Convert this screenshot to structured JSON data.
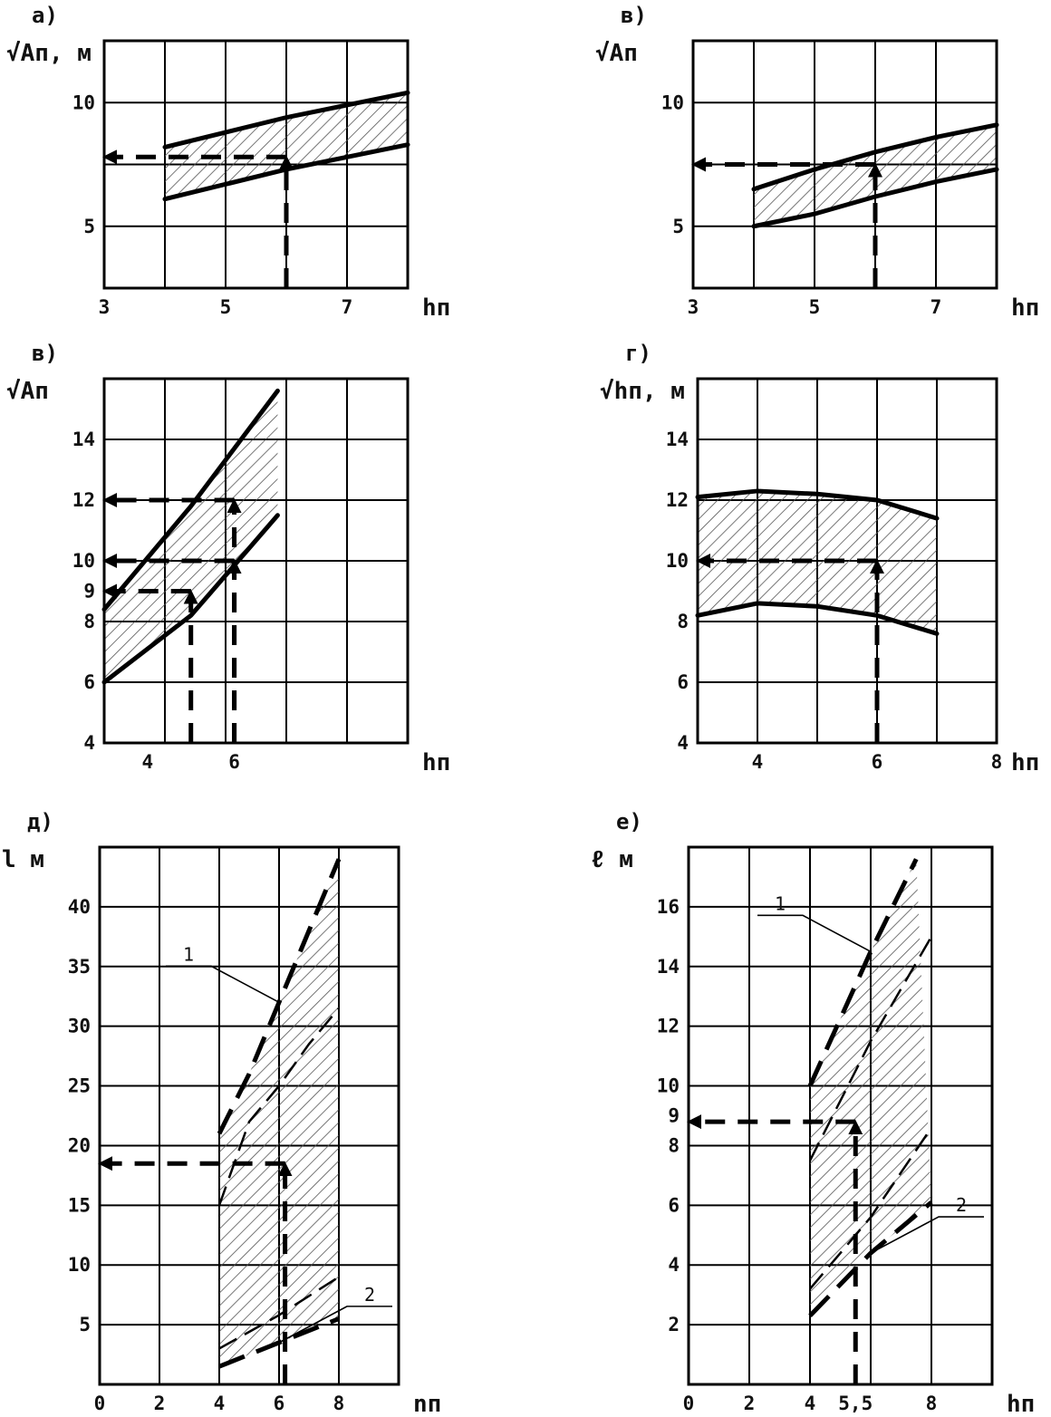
{
  "chart_data": [
    {
      "letter": "а)",
      "type": "area",
      "ylabel": "√Aп, м",
      "xlabel": "hп",
      "x_ticks": [
        3,
        5,
        7
      ],
      "y_ticks": [
        5,
        10
      ],
      "xlim": [
        3,
        8
      ],
      "ylim": [
        2.5,
        12.5
      ],
      "grid": true,
      "series": [
        {
          "role": "upper",
          "x": [
            4,
            5,
            6,
            7,
            8
          ],
          "y": [
            8.2,
            8.8,
            9.4,
            9.9,
            10.4
          ]
        },
        {
          "role": "lower",
          "x": [
            4,
            5,
            6,
            7,
            8
          ],
          "y": [
            6.1,
            6.7,
            7.3,
            7.8,
            8.3
          ]
        }
      ],
      "guides": [
        {
          "x": 6,
          "y": 7.8
        }
      ],
      "notes": []
    },
    {
      "letter": "в)",
      "type": "area",
      "ylabel": "√Aп",
      "xlabel": "hп",
      "x_ticks": [
        3,
        5,
        7
      ],
      "y_ticks": [
        5,
        10
      ],
      "xlim": [
        3,
        8
      ],
      "ylim": [
        2.5,
        12.5
      ],
      "grid": true,
      "series": [
        {
          "role": "upper",
          "x": [
            4,
            5,
            6,
            7,
            8
          ],
          "y": [
            6.5,
            7.3,
            8.0,
            8.6,
            9.1
          ]
        },
        {
          "role": "lower",
          "x": [
            4,
            5,
            6,
            7,
            8
          ],
          "y": [
            5.0,
            5.5,
            6.2,
            6.8,
            7.3
          ]
        }
      ],
      "guides": [
        {
          "x": 6,
          "y": 7.5
        }
      ],
      "notes": []
    },
    {
      "letter": "в)",
      "type": "area",
      "ylabel": "√Aп",
      "xlabel": "hп",
      "x_ticks": [
        4,
        6
      ],
      "y_ticks": [
        4,
        6,
        8,
        9,
        10,
        12,
        14
      ],
      "xlim": [
        3,
        10
      ],
      "ylim": [
        4,
        16
      ],
      "grid": true,
      "series": [
        {
          "role": "upper",
          "x": [
            3,
            5,
            7
          ],
          "y": [
            8.4,
            11.8,
            15.6
          ]
        },
        {
          "role": "lower",
          "x": [
            3,
            5,
            7
          ],
          "y": [
            6.0,
            8.2,
            11.5
          ]
        }
      ],
      "guides": [
        {
          "x": 6,
          "y": 12
        },
        {
          "x": 6,
          "y": 10
        },
        {
          "x": 5,
          "y": 9
        }
      ],
      "notes": []
    },
    {
      "letter": "г)",
      "type": "area",
      "ylabel": "√hп, м",
      "xlabel": "hп",
      "x_ticks": [
        4,
        6,
        8
      ],
      "y_ticks": [
        4,
        6,
        8,
        10,
        12,
        14
      ],
      "xlim": [
        3,
        8
      ],
      "ylim": [
        4,
        16
      ],
      "grid": true,
      "series": [
        {
          "role": "upper",
          "x": [
            3,
            4,
            5,
            6,
            7
          ],
          "y": [
            12.1,
            12.3,
            12.2,
            12.0,
            11.4
          ]
        },
        {
          "role": "lower",
          "x": [
            3,
            4,
            5,
            6,
            7
          ],
          "y": [
            8.2,
            8.6,
            8.5,
            8.2,
            7.6
          ]
        }
      ],
      "guides": [
        {
          "x": 6,
          "y": 10
        }
      ],
      "notes": []
    },
    {
      "letter": "д)",
      "type": "area",
      "ylabel": "l м",
      "xlabel": "nп",
      "x_ticks": [
        0,
        2,
        4,
        6,
        8
      ],
      "y_ticks": [
        5,
        10,
        15,
        20,
        25,
        30,
        35,
        40
      ],
      "xlim": [
        0,
        10
      ],
      "ylim": [
        0,
        45
      ],
      "grid": true,
      "series": [
        {
          "role": "upper",
          "x": [
            4,
            5,
            6,
            7,
            8
          ],
          "y": [
            21,
            26,
            32,
            38,
            44
          ]
        },
        {
          "role": "lower",
          "x": [
            4,
            6,
            8
          ],
          "y": [
            1.5,
            3.5,
            5.5
          ]
        },
        {
          "role": "mid",
          "x": [
            4,
            5,
            6,
            7,
            8
          ],
          "y": [
            15,
            22,
            25,
            28.5,
            31.5
          ]
        },
        {
          "role": "mid",
          "x": [
            4,
            6,
            8
          ],
          "y": [
            3.0,
            5.8,
            9.0
          ]
        }
      ],
      "guides": [
        {
          "x": 6.2,
          "y": 18.5
        }
      ],
      "notes": [
        "1",
        "2"
      ]
    },
    {
      "letter": "е)",
      "type": "area",
      "ylabel": "ℓ м",
      "xlabel": "hп",
      "x_ticks": [
        "0",
        "2",
        "4",
        "5,5",
        "8"
      ],
      "y_ticks": [
        2,
        4,
        6,
        8,
        9,
        10,
        12,
        14,
        16
      ],
      "xlim": [
        0,
        10
      ],
      "ylim": [
        0,
        18
      ],
      "grid": true,
      "series": [
        {
          "role": "upper",
          "x": [
            4,
            6,
            7.5
          ],
          "y": [
            10,
            14.5,
            17.6
          ]
        },
        {
          "role": "lower",
          "x": [
            4,
            6,
            8
          ],
          "y": [
            2.3,
            4.4,
            6.1
          ]
        },
        {
          "role": "mid",
          "x": [
            4,
            6,
            8
          ],
          "y": [
            7.5,
            11.5,
            15.0
          ]
        },
        {
          "role": "mid",
          "x": [
            4,
            6,
            8
          ],
          "y": [
            3.2,
            5.6,
            8.6
          ]
        }
      ],
      "guides": [
        {
          "x": 5.5,
          "y": 8.8
        }
      ],
      "notes": [
        "1",
        "2"
      ]
    }
  ]
}
